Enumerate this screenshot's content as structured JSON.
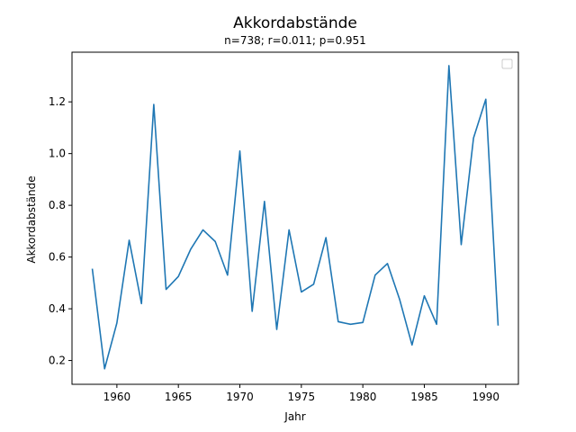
{
  "chart_data": {
    "type": "line",
    "title": "Akkordabstände",
    "subtitle": "n=738; r=0.011; p=0.951",
    "xlabel": "Jahr",
    "ylabel": "Akkordabstände",
    "xlim": [
      1956.35,
      1992.65
    ],
    "ylim": [
      0.108,
      1.392
    ],
    "x_ticks": [
      1960,
      1965,
      1970,
      1975,
      1980,
      1985,
      1990
    ],
    "y_ticks": [
      0.2,
      0.4,
      0.6,
      0.8,
      1.0,
      1.2
    ],
    "x_tick_labels": [
      "1960",
      "1965",
      "1970",
      "1975",
      "1980",
      "1985",
      "1990"
    ],
    "y_tick_labels": [
      "0.2",
      "0.4",
      "0.6",
      "0.8",
      "1.0",
      "1.2"
    ],
    "grid": false,
    "legend": "top-right",
    "color": "#1f77b4",
    "series": [
      {
        "x": [
          1958,
          1959,
          1960,
          1961,
          1962,
          1963,
          1964,
          1965,
          1966,
          1967,
          1968,
          1969,
          1970,
          1971,
          1972,
          1973,
          1974,
          1975,
          1976,
          1977,
          1978,
          1979,
          1980,
          1981,
          1982,
          1983,
          1984,
          1985,
          1986,
          1987,
          1988,
          1989,
          1990,
          1991
        ],
        "values": [
          0.555,
          0.168,
          0.345,
          0.665,
          0.42,
          1.19,
          0.475,
          0.525,
          0.63,
          0.705,
          0.66,
          0.53,
          1.01,
          0.39,
          0.815,
          0.32,
          0.705,
          0.465,
          0.495,
          0.675,
          0.35,
          0.34,
          0.347,
          0.53,
          0.575,
          0.435,
          0.26,
          0.45,
          0.34,
          1.34,
          0.648,
          1.06,
          1.21,
          0.335
        ]
      }
    ]
  }
}
